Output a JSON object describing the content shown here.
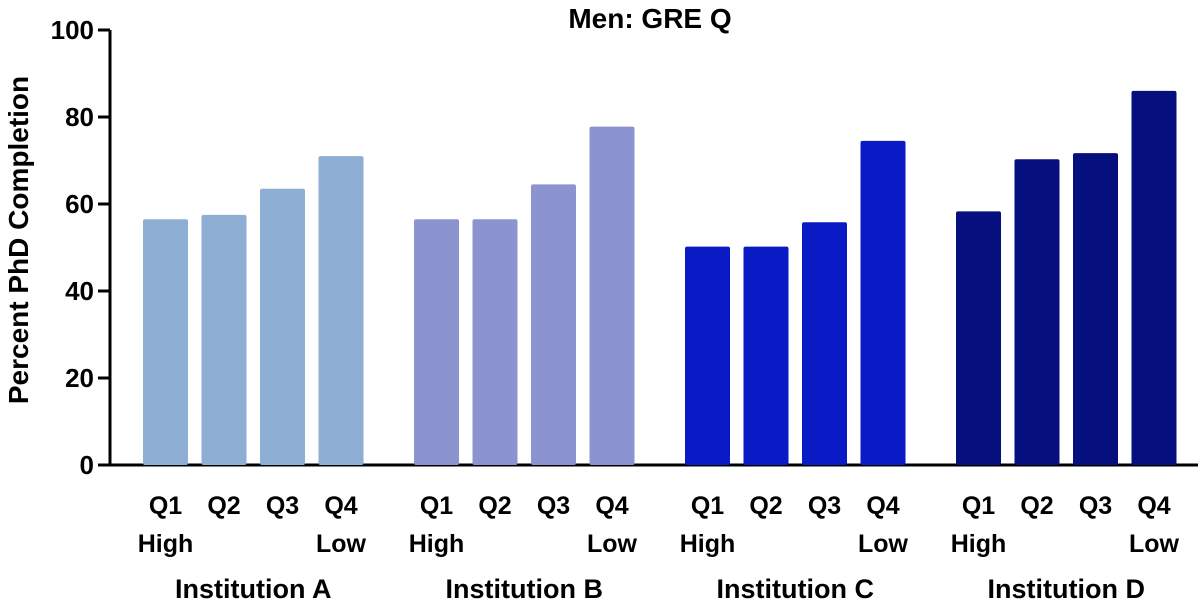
{
  "chart_data": {
    "type": "bar",
    "title": "Men: GRE Q",
    "ylabel": "Percent PhD Completion",
    "xlabel": "",
    "ylim": [
      0,
      100
    ],
    "yticks": [
      0,
      20,
      40,
      60,
      80,
      100
    ],
    "grid": false,
    "legend": "none",
    "bar_labels": [
      "Q1",
      "Q2",
      "Q3",
      "Q4"
    ],
    "bar_sublabels": [
      "High",
      "",
      "",
      "Low"
    ],
    "groups": [
      {
        "name": "Institution A",
        "color": "#8EAED4",
        "values": [
          56.5,
          57.5,
          63.5,
          71
        ]
      },
      {
        "name": "Institution B",
        "color": "#8C94D0",
        "values": [
          56.5,
          56.5,
          64.5,
          77.8
        ]
      },
      {
        "name": "Institution C",
        "color": "#0A1AC4",
        "values": [
          50.2,
          50.2,
          55.8,
          74.5
        ]
      },
      {
        "name": "Institution D",
        "color": "#060F7E",
        "values": [
          58.3,
          70.3,
          71.7,
          86
        ]
      }
    ]
  }
}
